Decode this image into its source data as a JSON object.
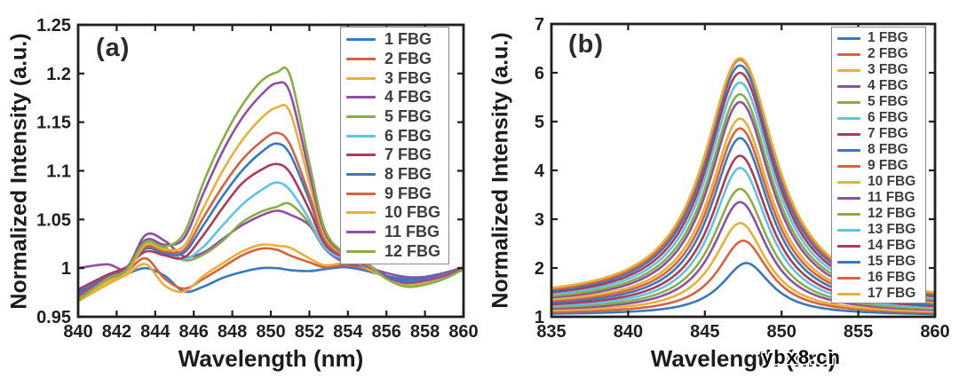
{
  "figure": {
    "background": "#ffffff"
  },
  "palette": [
    "#3579BE",
    "#D8623F",
    "#E5B13A",
    "#8E4FA5",
    "#88AE45",
    "#5FC2E7",
    "#B03A55"
  ],
  "watermark": {
    "text": "ybx8.cn"
  },
  "chart_data": [
    {
      "type": "line",
      "panel_label": "(a)",
      "xlabel": "Wavelength (nm)",
      "ylabel": "Normalized Intensity (a.u.)",
      "xlim": [
        840,
        860
      ],
      "ylim": [
        0.95,
        1.25
      ],
      "xticks": [
        840,
        842,
        844,
        846,
        848,
        850,
        852,
        854,
        856,
        858,
        860
      ],
      "yticks": [
        0.95,
        1,
        1.05,
        1.1,
        1.15,
        1.2,
        1.25
      ],
      "ytick_labels": [
        "0.95",
        "1",
        "1.05",
        "1.1",
        "1.15",
        "1.2",
        "1.25"
      ],
      "grid": false,
      "legend_position": "top-right",
      "x": [
        840,
        841.5,
        842.5,
        843.5,
        844.5,
        845.5,
        846.5,
        847.5,
        848.5,
        849.5,
        850.3,
        851,
        852,
        852.8,
        853.8,
        854.8,
        856,
        857,
        858,
        859,
        860
      ],
      "series": [
        {
          "name": "1 FBG",
          "peak": 1.0,
          "y": [
            0.976,
            0.988,
            0.994,
            1.0,
            0.992,
            0.976,
            0.981,
            0.99,
            0.996,
            1.0,
            1.0,
            0.998,
            0.997,
            0.999,
            1.001,
            0.998,
            0.992,
            0.989,
            0.991,
            0.995,
            1.0
          ]
        },
        {
          "name": "2 FBG",
          "peak": 1.02,
          "y": [
            0.971,
            0.986,
            0.996,
            1.01,
            0.989,
            0.979,
            0.989,
            1.001,
            1.013,
            1.02,
            1.019,
            1.013,
            1.006,
            1.001,
            1.003,
            1.0,
            0.991,
            0.986,
            0.988,
            0.994,
            1.001
          ]
        },
        {
          "name": "3 FBG",
          "peak": 1.025,
          "y": [
            0.966,
            0.983,
            0.993,
            1.004,
            0.982,
            0.976,
            0.992,
            1.005,
            1.017,
            1.024,
            1.023,
            1.021,
            1.01,
            1.003,
            1.005,
            1.001,
            0.99,
            0.984,
            0.986,
            0.992,
            1.0
          ]
        },
        {
          "name": "4 FBG",
          "peak": 1.059,
          "y": [
            1.0,
            1.004,
            1.0,
            1.034,
            1.028,
            1.012,
            1.016,
            1.03,
            1.044,
            1.054,
            1.059,
            1.055,
            1.044,
            1.02,
            1.006,
            1.002,
            0.995,
            0.991,
            0.991,
            0.995,
            1.001
          ]
        },
        {
          "name": "5 FBG",
          "peak": 1.066,
          "y": [
            0.97,
            0.99,
            0.999,
            1.026,
            1.021,
            1.008,
            1.014,
            1.028,
            1.047,
            1.058,
            1.063,
            1.066,
            1.046,
            1.021,
            1.01,
            1.004,
            0.992,
            0.984,
            0.985,
            0.991,
            0.999
          ]
        },
        {
          "name": "6 FBG",
          "peak": 1.088,
          "y": [
            0.974,
            0.989,
            0.997,
            1.021,
            1.017,
            1.009,
            1.022,
            1.044,
            1.065,
            1.08,
            1.088,
            1.08,
            1.05,
            1.021,
            1.009,
            1.003,
            0.991,
            0.985,
            0.987,
            0.992,
            0.998
          ]
        },
        {
          "name": "7 FBG",
          "peak": 1.107,
          "y": [
            0.978,
            0.993,
            1.001,
            1.017,
            1.013,
            1.011,
            1.034,
            1.062,
            1.087,
            1.101,
            1.107,
            1.098,
            1.06,
            1.025,
            1.011,
            1.004,
            0.991,
            0.985,
            0.987,
            0.992,
            1.0
          ]
        },
        {
          "name": "8 FBG",
          "peak": 1.128,
          "y": [
            0.975,
            0.991,
            0.999,
            1.02,
            1.015,
            1.016,
            1.044,
            1.074,
            1.1,
            1.119,
            1.128,
            1.117,
            1.07,
            1.028,
            1.012,
            1.005,
            0.992,
            0.987,
            0.989,
            0.994,
            1.0
          ]
        },
        {
          "name": "9 FBG",
          "peak": 1.139,
          "y": [
            0.971,
            0.989,
            0.997,
            1.022,
            1.017,
            1.019,
            1.052,
            1.084,
            1.111,
            1.13,
            1.139,
            1.127,
            1.075,
            1.029,
            1.012,
            1.005,
            0.991,
            0.985,
            0.987,
            0.993,
            1.0
          ]
        },
        {
          "name": "10 FBG",
          "peak": 1.165,
          "y": [
            0.967,
            0.986,
            0.995,
            1.024,
            1.019,
            1.023,
            1.062,
            1.1,
            1.131,
            1.154,
            1.165,
            1.16,
            1.088,
            1.033,
            1.015,
            1.007,
            0.989,
            0.982,
            0.985,
            0.991,
            1.0
          ]
        },
        {
          "name": "11 FBG",
          "peak": 1.19,
          "y": [
            0.972,
            0.991,
            1.0,
            1.029,
            1.024,
            1.031,
            1.077,
            1.12,
            1.154,
            1.178,
            1.19,
            1.18,
            1.098,
            1.037,
            1.015,
            1.007,
            0.991,
            0.985,
            0.987,
            0.992,
            1.0
          ]
        },
        {
          "name": "12 FBG",
          "peak": 1.201,
          "y": [
            0.967,
            0.989,
            0.998,
            1.027,
            1.022,
            1.036,
            1.088,
            1.132,
            1.167,
            1.192,
            1.201,
            1.198,
            1.108,
            1.04,
            1.016,
            1.008,
            0.989,
            0.981,
            0.983,
            0.989,
            0.999
          ]
        }
      ]
    },
    {
      "type": "line",
      "panel_label": "(b)",
      "xlabel": "Wavelength (nm)",
      "ylabel": "Normalized Intensity (a.u.)",
      "xlim": [
        835,
        860
      ],
      "ylim": [
        1,
        7
      ],
      "xticks": [
        835,
        840,
        845,
        850,
        855,
        860
      ],
      "yticks": [
        1,
        2,
        3,
        4,
        5,
        6,
        7
      ],
      "ytick_labels": [
        "1",
        "2",
        "3",
        "4",
        "5",
        "6",
        "7"
      ],
      "grid": false,
      "legend_position": "top-right",
      "model": "lorentzian",
      "series": [
        {
          "name": "1 FBG",
          "peak": 2.1,
          "center": 847.7,
          "width": 1.96,
          "base_left": 1.04,
          "base_right": 1.03
        },
        {
          "name": "2 FBG",
          "peak": 2.56,
          "center": 847.5,
          "width": 2.01,
          "base_left": 1.06,
          "base_right": 1.05
        },
        {
          "name": "3 FBG",
          "peak": 2.92,
          "center": 847.3,
          "width": 2.07,
          "base_left": 1.08,
          "base_right": 1.06
        },
        {
          "name": "4 FBG",
          "peak": 3.35,
          "center": 847.3,
          "width": 2.12,
          "base_left": 1.1,
          "base_right": 1.08
        },
        {
          "name": "5 FBG",
          "peak": 3.62,
          "center": 847.3,
          "width": 2.18,
          "base_left": 1.12,
          "base_right": 1.09
        },
        {
          "name": "6 FBG",
          "peak": 4.05,
          "center": 847.3,
          "width": 2.23,
          "base_left": 1.13,
          "base_right": 1.1
        },
        {
          "name": "7 FBG",
          "peak": 4.3,
          "center": 847.3,
          "width": 2.29,
          "base_left": 1.15,
          "base_right": 1.12
        },
        {
          "name": "8 FBG",
          "peak": 4.66,
          "center": 847.3,
          "width": 2.34,
          "base_left": 1.17,
          "base_right": 1.13
        },
        {
          "name": "9 FBG",
          "peak": 4.86,
          "center": 847.3,
          "width": 2.4,
          "base_left": 1.19,
          "base_right": 1.15
        },
        {
          "name": "10 FBG",
          "peak": 5.06,
          "center": 847.3,
          "width": 2.45,
          "base_left": 1.21,
          "base_right": 1.16
        },
        {
          "name": "11 FBG",
          "peak": 5.4,
          "center": 847.3,
          "width": 2.51,
          "base_left": 1.23,
          "base_right": 1.17
        },
        {
          "name": "12 FBG",
          "peak": 5.56,
          "center": 847.3,
          "width": 2.56,
          "base_left": 1.25,
          "base_right": 1.19
        },
        {
          "name": "13 FBG",
          "peak": 5.8,
          "center": 847.3,
          "width": 2.62,
          "base_left": 1.27,
          "base_right": 1.2
        },
        {
          "name": "14 FBG",
          "peak": 6.0,
          "center": 847.3,
          "width": 2.67,
          "base_left": 1.29,
          "base_right": 1.22
        },
        {
          "name": "15 FBG",
          "peak": 6.15,
          "center": 847.3,
          "width": 2.73,
          "base_left": 1.31,
          "base_right": 1.23
        },
        {
          "name": "16 FBG",
          "peak": 6.27,
          "center": 847.3,
          "width": 2.78,
          "base_left": 1.32,
          "base_right": 1.24
        },
        {
          "name": "17 FBG",
          "peak": 6.3,
          "center": 847.3,
          "width": 2.84,
          "base_left": 1.34,
          "base_right": 1.26
        }
      ]
    }
  ]
}
